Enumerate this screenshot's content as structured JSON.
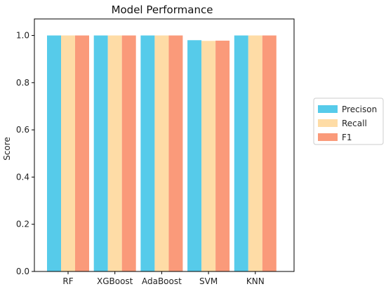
{
  "chart_data": {
    "type": "bar",
    "title": "Model Performance",
    "xlabel": "",
    "ylabel": "Score",
    "ylim": [
      0,
      1.07
    ],
    "yticks": [
      0.0,
      0.2,
      0.4,
      0.6,
      0.8,
      1.0
    ],
    "ytick_labels": [
      "0.0",
      "0.2",
      "0.4",
      "0.6",
      "0.8",
      "1.0"
    ],
    "grid": false,
    "legend_position": "right",
    "categories": [
      "RF",
      "XGBoost",
      "AdaBoost",
      "SVM",
      "KNN"
    ],
    "series": [
      {
        "name": "Precison",
        "color": "#56cbea",
        "values": [
          1.0,
          1.0,
          1.0,
          0.98,
          1.0
        ]
      },
      {
        "name": "Recall",
        "color": "#fedca6",
        "values": [
          1.0,
          1.0,
          1.0,
          0.977,
          1.0
        ]
      },
      {
        "name": "F1",
        "color": "#fa9a7a",
        "values": [
          1.0,
          1.0,
          1.0,
          0.978,
          1.0
        ]
      }
    ]
  }
}
